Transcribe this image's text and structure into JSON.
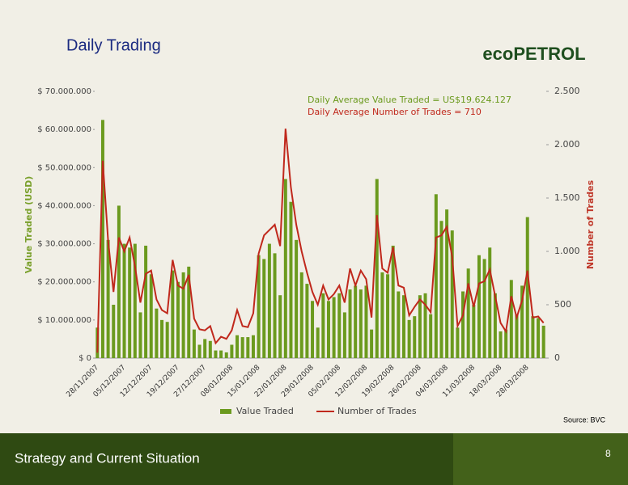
{
  "header": {
    "title": "Daily Trading",
    "logo": "ecoPETROL"
  },
  "chart_data": {
    "type": "bar-line",
    "y_label": "Value Traded (USD)",
    "y2_label": "Number of Trades",
    "annotations": [
      {
        "text": "Daily Average Value Traded  = US$19.624.127",
        "color": "#6b9a1e"
      },
      {
        "text": "Daily Average Number of  Trades = 710",
        "color": "#c0281c"
      }
    ],
    "categories": [
      "28/11/2007",
      null,
      null,
      null,
      null,
      "05/12/2007",
      null,
      null,
      null,
      null,
      "12/12/2007",
      null,
      null,
      null,
      null,
      "19/12/2007",
      null,
      null,
      null,
      null,
      "27/12/2007",
      null,
      null,
      null,
      null,
      "08/01/2008",
      null,
      null,
      null,
      null,
      "15/01/2008",
      null,
      null,
      null,
      null,
      "22/01/2008",
      null,
      null,
      null,
      null,
      "29/01/2008",
      null,
      null,
      null,
      null,
      "05/02/2008",
      null,
      null,
      null,
      null,
      "12/02/2008",
      null,
      null,
      null,
      null,
      "19/02/2008",
      null,
      null,
      null,
      null,
      "26/02/2008",
      null,
      null,
      null,
      null,
      "04/03/2008",
      null,
      null,
      null,
      null,
      "11/03/2008",
      null,
      null,
      null,
      null,
      "18/03/2008",
      null,
      null,
      null,
      null,
      "28/03/2008",
      null,
      null,
      null
    ],
    "series": [
      {
        "name": "Value Traded",
        "color": "#6b9a1e",
        "kind": "bar",
        "values": [
          8000000,
          62500000,
          31000000,
          14000000,
          40000000,
          30000000,
          29000000,
          30000000,
          12000000,
          29500000,
          22000000,
          13000000,
          10000000,
          9500000,
          23000000,
          20000000,
          22500000,
          24000000,
          7500000,
          3500000,
          5000000,
          4500000,
          2000000,
          2000000,
          1500000,
          3500000,
          6000000,
          5500000,
          5500000,
          6000000,
          27000000,
          26000000,
          30000000,
          27500000,
          16500000,
          47000000,
          41000000,
          31000000,
          22500000,
          19500000,
          15000000,
          8000000,
          17000000,
          15000000,
          16000000,
          17000000,
          12000000,
          18000000,
          19000000,
          18000000,
          19000000,
          7500000,
          47000000,
          22500000,
          22000000,
          29500000,
          17500000,
          16500000,
          10000000,
          11000000,
          16500000,
          17000000,
          11500000,
          43000000,
          36000000,
          39000000,
          33500000,
          8000000,
          17500000,
          23500000,
          14000000,
          27000000,
          26000000,
          29000000,
          17000000,
          7000000,
          7500000,
          20500000,
          11500000,
          19000000,
          37000000,
          11000000,
          10500000,
          8500000
        ]
      },
      {
        "name": "Number of Trades",
        "color": "#c0281c",
        "kind": "line",
        "axis": "y2",
        "values": [
          50,
          1850,
          1100,
          620,
          1130,
          1000,
          1130,
          860,
          520,
          790,
          820,
          550,
          450,
          420,
          920,
          680,
          650,
          780,
          370,
          270,
          260,
          300,
          140,
          200,
          180,
          260,
          450,
          300,
          290,
          420,
          980,
          1150,
          1200,
          1250,
          1050,
          2150,
          1600,
          1250,
          1000,
          800,
          620,
          500,
          680,
          550,
          600,
          680,
          520,
          840,
          680,
          820,
          740,
          380,
          1340,
          840,
          800,
          1040,
          680,
          660,
          400,
          480,
          550,
          500,
          430,
          1130,
          1150,
          1230,
          950,
          300,
          400,
          700,
          480,
          700,
          720,
          830,
          580,
          330,
          250,
          580,
          380,
          540,
          820,
          380,
          390,
          330
        ]
      }
    ],
    "ylim": [
      0,
      70000000
    ],
    "yticks": [
      {
        "value": 0,
        "label": "$ 0"
      },
      {
        "value": 10000000,
        "label": "$ 10.000.000"
      },
      {
        "value": 20000000,
        "label": "$ 20.000.000"
      },
      {
        "value": 30000000,
        "label": "$ 30.000.000"
      },
      {
        "value": 40000000,
        "label": "$ 40.000.000"
      },
      {
        "value": 50000000,
        "label": "$ 50.000.000"
      },
      {
        "value": 60000000,
        "label": "$ 60.000.000"
      },
      {
        "value": 70000000,
        "label": "$ 70.000.000"
      }
    ],
    "y2lim": [
      0,
      2500
    ],
    "y2ticks": [
      0,
      500,
      {
        "value": 1000,
        "label": "1.000"
      },
      {
        "value": 1500,
        "label": "1.500"
      },
      {
        "value": 2000,
        "label": "2.000"
      },
      {
        "value": 2500,
        "label": "2.500"
      }
    ],
    "grid": false,
    "legend": "bottom"
  },
  "source": "Source: BVC",
  "footer": {
    "title": "Strategy and Current  Situation",
    "page": "8"
  }
}
